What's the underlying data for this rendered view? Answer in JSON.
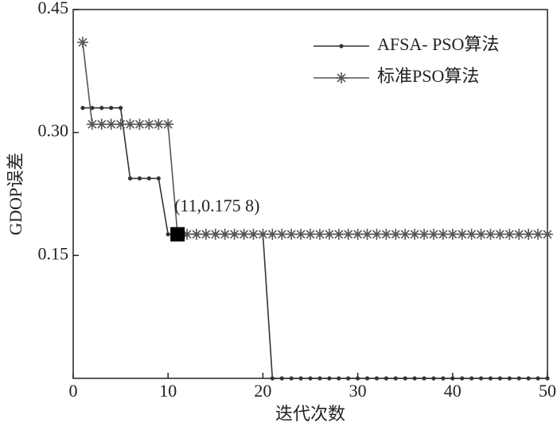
{
  "chart_data": {
    "type": "line",
    "x_label": "迭代次数",
    "y_label": "GDOP误差",
    "x": [
      1,
      2,
      3,
      4,
      5,
      6,
      7,
      8,
      9,
      10,
      11,
      12,
      13,
      14,
      15,
      16,
      17,
      18,
      19,
      20,
      21,
      22,
      23,
      24,
      25,
      26,
      27,
      28,
      29,
      30,
      31,
      32,
      33,
      34,
      35,
      36,
      37,
      38,
      39,
      40,
      41,
      42,
      43,
      44,
      45,
      46,
      47,
      48,
      49,
      50
    ],
    "series": [
      {
        "name": "AFSA- PSO算法",
        "color": "#333333",
        "marker": "dot",
        "values": [
          0.33,
          0.33,
          0.33,
          0.33,
          0.33,
          0.244,
          0.244,
          0.244,
          0.244,
          0.1758,
          0.1758,
          0.1758,
          0.1758,
          0.1758,
          0.1758,
          0.1758,
          0.1758,
          0.1758,
          0.1758,
          0.1758,
          0,
          0,
          0,
          0,
          0,
          0,
          0,
          0,
          0,
          0,
          0,
          0,
          0,
          0,
          0,
          0,
          0,
          0,
          0,
          0,
          0,
          0,
          0,
          0,
          0,
          0,
          0,
          0,
          0,
          0
        ]
      },
      {
        "name": "标准PSO算法",
        "color": "#555555",
        "marker": "star",
        "values": [
          0.41,
          0.31,
          0.31,
          0.31,
          0.31,
          0.31,
          0.31,
          0.31,
          0.31,
          0.31,
          0.1758,
          0.1758,
          0.1758,
          0.1758,
          0.1758,
          0.1758,
          0.1758,
          0.1758,
          0.1758,
          0.1758,
          0.1758,
          0.1758,
          0.1758,
          0.1758,
          0.1758,
          0.1758,
          0.1758,
          0.1758,
          0.1758,
          0.1758,
          0.1758,
          0.1758,
          0.1758,
          0.1758,
          0.1758,
          0.1758,
          0.1758,
          0.1758,
          0.1758,
          0.1758,
          0.1758,
          0.1758,
          0.1758,
          0.1758,
          0.1758,
          0.1758,
          0.1758,
          0.1758,
          0.1758,
          0.1758
        ]
      }
    ],
    "annotation": {
      "text": "(11,0.175 8)",
      "x": 11,
      "y": 0.1758
    },
    "xlim": [
      0,
      50
    ],
    "xticks": [
      0,
      10,
      20,
      30,
      40,
      50
    ],
    "ylim": [
      0,
      0.45
    ],
    "yticks": [
      0.15,
      {
        "value": 0.3,
        "label": "0.30"
      },
      0.45
    ],
    "legend": "top-right"
  }
}
